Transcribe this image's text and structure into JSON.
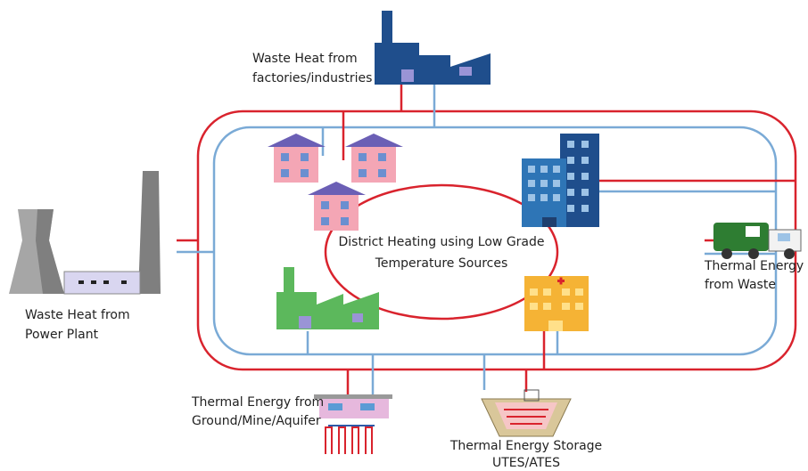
{
  "center": {
    "lines": [
      "District Heating using Low Grade",
      "Temperature Sources"
    ]
  },
  "sources": [
    {
      "lines": [
        "Waste Heat from",
        "factories/industries"
      ]
    },
    {
      "lines": [
        "Waste Heat from",
        "Power Plant"
      ]
    },
    {
      "lines": [
        "Thermal Energy",
        "from Waste"
      ]
    },
    {
      "lines": [
        "Thermal Energy from",
        "Ground/Mine/Aquifer"
      ]
    },
    {
      "lines": [
        "Thermal Energy Storage",
        "UTES/ATES"
      ]
    }
  ]
}
